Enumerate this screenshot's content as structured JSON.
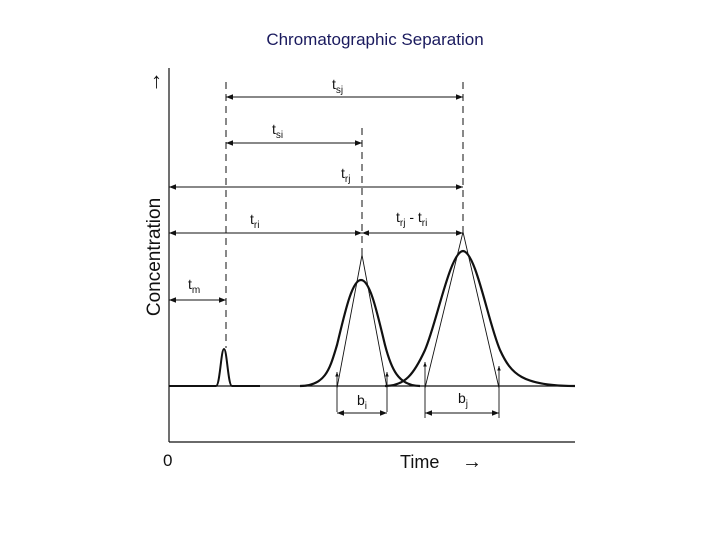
{
  "slide": {
    "title": "Chromatographic Separation",
    "title_color": "#1a1a5e"
  },
  "diagram": {
    "y_axis_label": "Concentration",
    "y_axis_arrow": "↑",
    "x_axis_label": "Time",
    "x_axis_arrow": "→",
    "origin_label": "0",
    "intervals": {
      "tsj": {
        "main": "t",
        "sub": "sj"
      },
      "tsi": {
        "main": "t",
        "sub": "si"
      },
      "trj": {
        "main": "t",
        "sub": "rj"
      },
      "tri": {
        "main": "t",
        "sub": "ri"
      },
      "trj_minus_tri": {
        "main1": "t",
        "sub1": "rj",
        "mid": " - t",
        "sub2": "ri"
      },
      "tm": {
        "main": "t",
        "sub": "m"
      }
    },
    "widths": {
      "bi": {
        "main": "b",
        "sub": "i"
      },
      "bj": {
        "main": "b",
        "sub": "j"
      }
    },
    "line_color": "#111111"
  }
}
